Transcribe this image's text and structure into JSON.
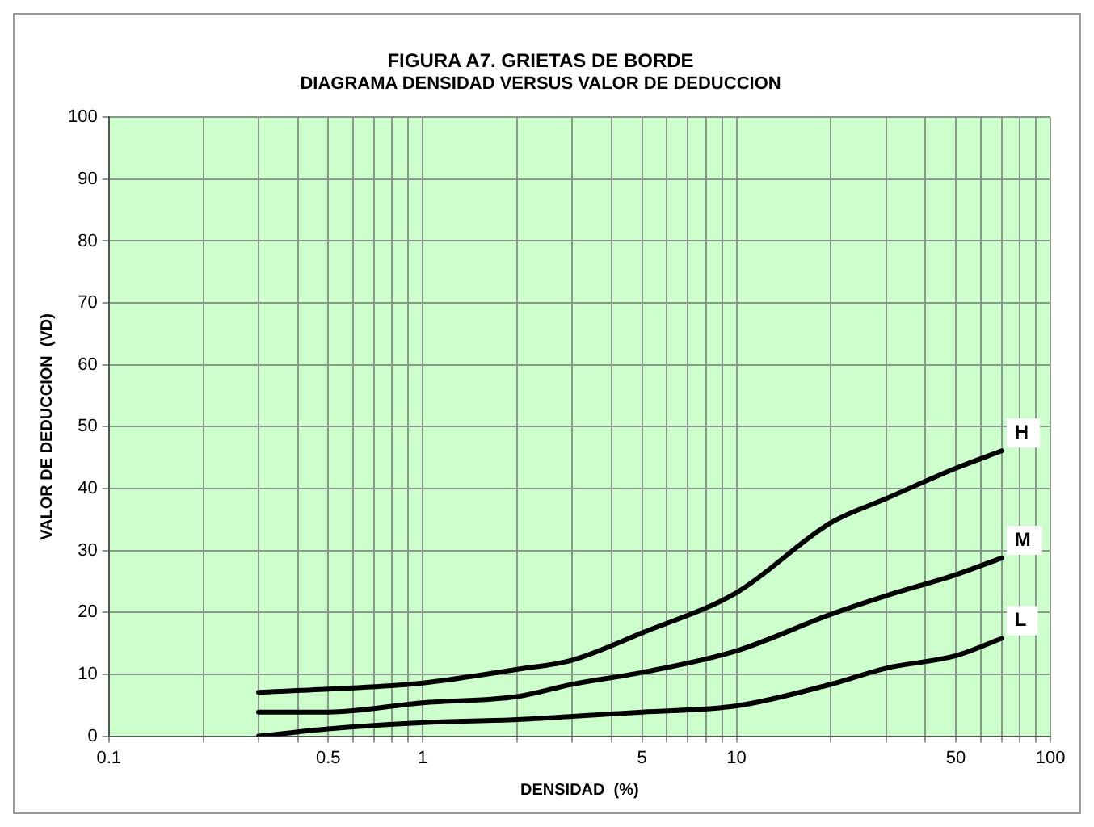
{
  "chart_data": {
    "type": "line",
    "title": "FIGURA A7. GRIETAS DE BORDE",
    "subtitle": "DIAGRAMA DENSIDAD VERSUS VALOR DE DEDUCCION",
    "xlabel": "DENSIDAD  (%)",
    "ylabel": "VALOR DE DEDUCCION  (VD)",
    "log": "x",
    "grid": true,
    "legend": false,
    "marker": "none",
    "line_style": "solid",
    "x": [
      0.3,
      0.5,
      1,
      2,
      3,
      5,
      10,
      20,
      30,
      50,
      70
    ],
    "series": [
      {
        "name": "H",
        "color": "#000000",
        "values": [
          7.1,
          7.6,
          8.6,
          10.8,
          12.3,
          16.7,
          23.2,
          34.5,
          38.4,
          43.3,
          46.1
        ]
      },
      {
        "name": "M",
        "color": "#000000",
        "values": [
          3.9,
          3.9,
          5.4,
          6.4,
          8.4,
          10.3,
          13.8,
          19.7,
          22.7,
          26.1,
          28.8
        ]
      },
      {
        "name": "L",
        "color": "#000000",
        "values": [
          0,
          1.2,
          2.2,
          2.7,
          3.2,
          3.9,
          4.9,
          8.4,
          11,
          13,
          15.8
        ]
      }
    ],
    "xlim": [
      0.1,
      100
    ],
    "xticks": [
      0.1,
      {
        "value": 0.2,
        "label": null
      },
      {
        "value": 0.3,
        "label": null
      },
      {
        "value": 0.4,
        "label": null
      },
      0.5,
      {
        "value": 0.6,
        "label": null
      },
      {
        "value": 0.7,
        "label": null
      },
      {
        "value": 0.8,
        "label": null
      },
      {
        "value": 0.9,
        "label": null
      },
      1,
      {
        "value": 2,
        "label": null
      },
      {
        "value": 3,
        "label": null
      },
      {
        "value": 4,
        "label": null
      },
      5,
      {
        "value": 6,
        "label": null
      },
      {
        "value": 7,
        "label": null
      },
      {
        "value": 8,
        "label": null
      },
      {
        "value": 9,
        "label": null
      },
      10,
      {
        "value": 20,
        "label": null
      },
      {
        "value": 30,
        "label": null
      },
      {
        "value": 40,
        "label": null
      },
      50,
      {
        "value": 60,
        "label": null
      },
      {
        "value": 70,
        "label": null
      },
      {
        "value": 80,
        "label": null
      },
      {
        "value": 90,
        "label": null
      },
      100
    ],
    "ylim": [
      0,
      100
    ],
    "yticks": [
      0,
      10,
      20,
      30,
      40,
      50,
      60,
      70,
      80,
      90,
      100
    ]
  }
}
